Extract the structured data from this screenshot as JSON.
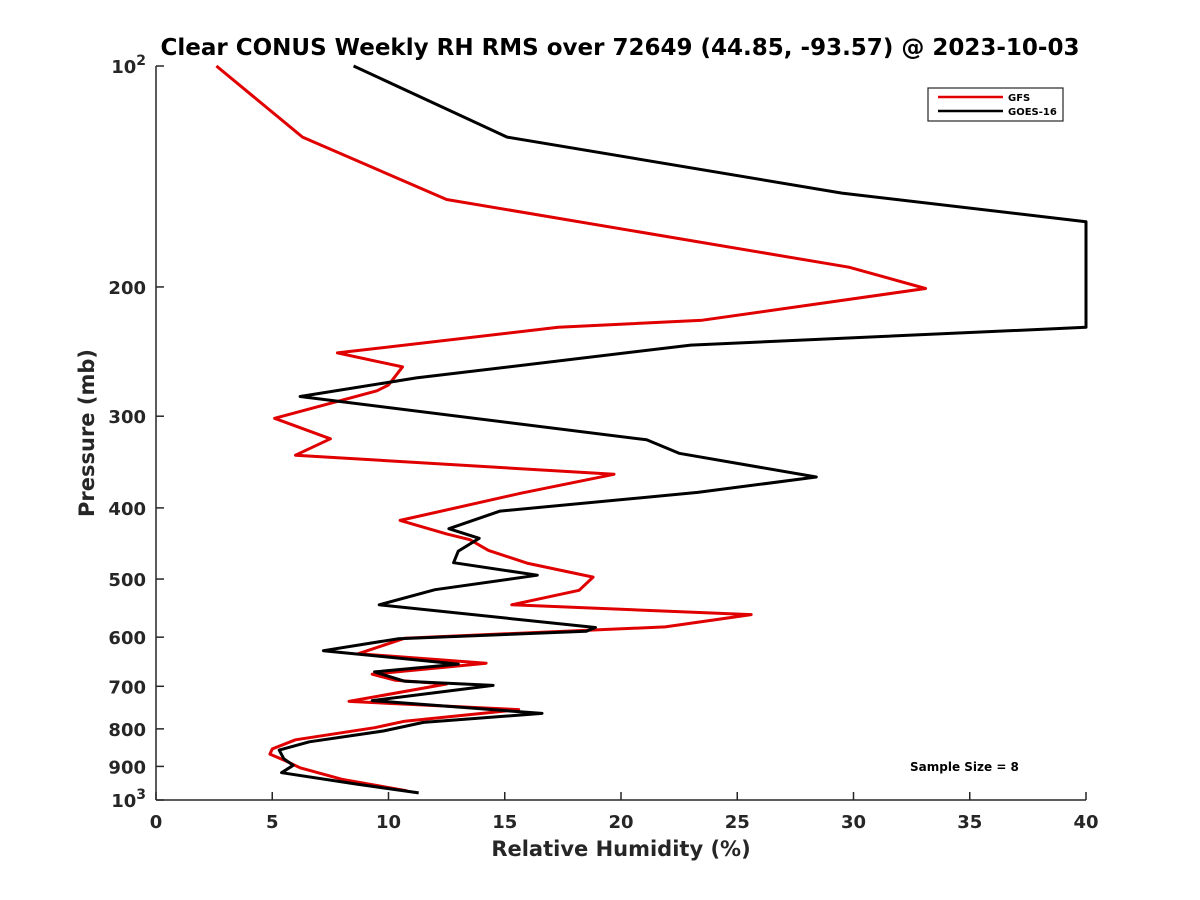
{
  "chart_data": {
    "type": "line",
    "title": "Clear CONUS Weekly RH RMS over 72649 (44.85, -93.57) @ 2023-10-03",
    "xlabel": "Relative Humidity (%)",
    "ylabel": "Pressure (mb)",
    "xlim": [
      0,
      40
    ],
    "ylim": [
      100,
      1000
    ],
    "yscale": "log",
    "y_reversed": true,
    "grid": false,
    "legend_position": "top-right",
    "xticks": [
      "0",
      "5",
      "10",
      "15",
      "20",
      "25",
      "30",
      "35",
      "40"
    ],
    "yticks": [
      {
        "value": 100,
        "base": "10",
        "exp": "2"
      },
      {
        "value": 200,
        "label": "200"
      },
      {
        "value": 300,
        "label": "300"
      },
      {
        "value": 400,
        "label": "400"
      },
      {
        "value": 500,
        "label": "500"
      },
      {
        "value": 600,
        "label": "600"
      },
      {
        "value": 700,
        "label": "700"
      },
      {
        "value": 800,
        "label": "800"
      },
      {
        "value": 900,
        "label": "900"
      },
      {
        "value": 1000,
        "base": "10",
        "exp": "3"
      }
    ],
    "series": [
      {
        "name": "GFS",
        "color": "#e00000",
        "points": [
          [
            2.6,
            100
          ],
          [
            6.3,
            125
          ],
          [
            12.5,
            152
          ],
          [
            29.8,
            188
          ],
          [
            33.1,
            201
          ],
          [
            23.5,
            222
          ],
          [
            17.3,
            227
          ],
          [
            7.8,
            246
          ],
          [
            10.6,
            257
          ],
          [
            10.0,
            272
          ],
          [
            9.5,
            277
          ],
          [
            5.1,
            302
          ],
          [
            7.5,
            322
          ],
          [
            6.0,
            339
          ],
          [
            19.7,
            360
          ],
          [
            15.7,
            382
          ],
          [
            10.5,
            416
          ],
          [
            12.5,
            434
          ],
          [
            13.5,
            442
          ],
          [
            14.3,
            457
          ],
          [
            16.0,
            476
          ],
          [
            18.8,
            497
          ],
          [
            18.2,
            518
          ],
          [
            15.3,
            542
          ],
          [
            25.6,
            559
          ],
          [
            21.9,
            581
          ],
          [
            10.7,
            602
          ],
          [
            8.7,
            632
          ],
          [
            14.2,
            651
          ],
          [
            9.3,
            674
          ],
          [
            10.3,
            687
          ],
          [
            12.5,
            695
          ],
          [
            8.3,
            734
          ],
          [
            15.6,
            753
          ],
          [
            10.7,
            781
          ],
          [
            9.4,
            797
          ],
          [
            6.0,
            828
          ],
          [
            5.0,
            852
          ],
          [
            4.9,
            866
          ],
          [
            5.6,
            885
          ],
          [
            6.2,
            904
          ],
          [
            8.0,
            937
          ],
          [
            10.8,
            972
          ]
        ]
      },
      {
        "name": "GOES-16",
        "color": "#000000",
        "points": [
          [
            8.5,
            100
          ],
          [
            15.1,
            125
          ],
          [
            29.5,
            149
          ],
          [
            40.0,
            163
          ],
          [
            40.0,
            227
          ],
          [
            23.0,
            240
          ],
          [
            11.2,
            266
          ],
          [
            6.2,
            282
          ],
          [
            21.1,
            323
          ],
          [
            22.5,
            337
          ],
          [
            28.4,
            363
          ],
          [
            23.3,
            381
          ],
          [
            14.8,
            404
          ],
          [
            12.6,
            427
          ],
          [
            13.9,
            440
          ],
          [
            13.0,
            458
          ],
          [
            12.8,
            475
          ],
          [
            16.4,
            494
          ],
          [
            12.0,
            517
          ],
          [
            9.6,
            542
          ],
          [
            18.9,
            582
          ],
          [
            18.5,
            589
          ],
          [
            10.4,
            603
          ],
          [
            7.2,
            626
          ],
          [
            13.0,
            653
          ],
          [
            9.4,
            669
          ],
          [
            10.7,
            689
          ],
          [
            14.5,
            698
          ],
          [
            9.3,
            732
          ],
          [
            16.6,
            762
          ],
          [
            11.5,
            784
          ],
          [
            9.8,
            805
          ],
          [
            6.6,
            833
          ],
          [
            5.3,
            855
          ],
          [
            5.5,
            879
          ],
          [
            5.9,
            897
          ],
          [
            5.4,
            918
          ],
          [
            8.6,
            951
          ],
          [
            11.3,
            978
          ]
        ]
      }
    ],
    "legend": [
      {
        "name": "GFS",
        "color": "#e00000"
      },
      {
        "name": "GOES-16",
        "color": "#000000"
      }
    ],
    "annotations": [
      "Sample Size = 8"
    ]
  }
}
